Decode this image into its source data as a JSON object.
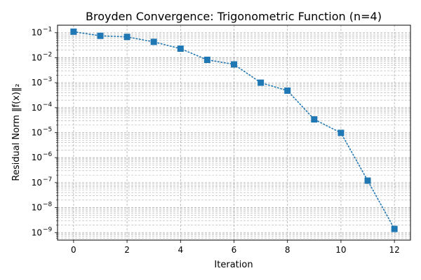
{
  "chart_data": {
    "type": "line",
    "title": "Broyden Convergence: Trigonometric Function (n=4)",
    "xlabel": "Iteration",
    "ylabel": "Residual Norm ‖f(x)‖₂",
    "y_scale": "log",
    "grid": true,
    "grid_minor": true,
    "x_ticks": [
      0,
      2,
      4,
      6,
      8,
      10,
      12
    ],
    "y_tick_exponents": [
      -9,
      -8,
      -7,
      -6,
      -5,
      -4,
      -3,
      -2,
      -1
    ],
    "xlim": [
      -0.6,
      12.6
    ],
    "ylim": [
      5e-10,
      0.2
    ],
    "x": [
      0,
      1,
      2,
      3,
      4,
      5,
      6,
      7,
      8,
      9,
      10,
      11,
      12
    ],
    "y": [
      0.11,
      0.075,
      0.068,
      0.043,
      0.023,
      0.0082,
      0.0054,
      0.001,
      0.00048,
      3.4e-05,
      9.8e-06,
      1.2e-07,
      1.4e-09
    ],
    "marker": "square",
    "line_style": "dotted",
    "color": "#1f77b4"
  }
}
